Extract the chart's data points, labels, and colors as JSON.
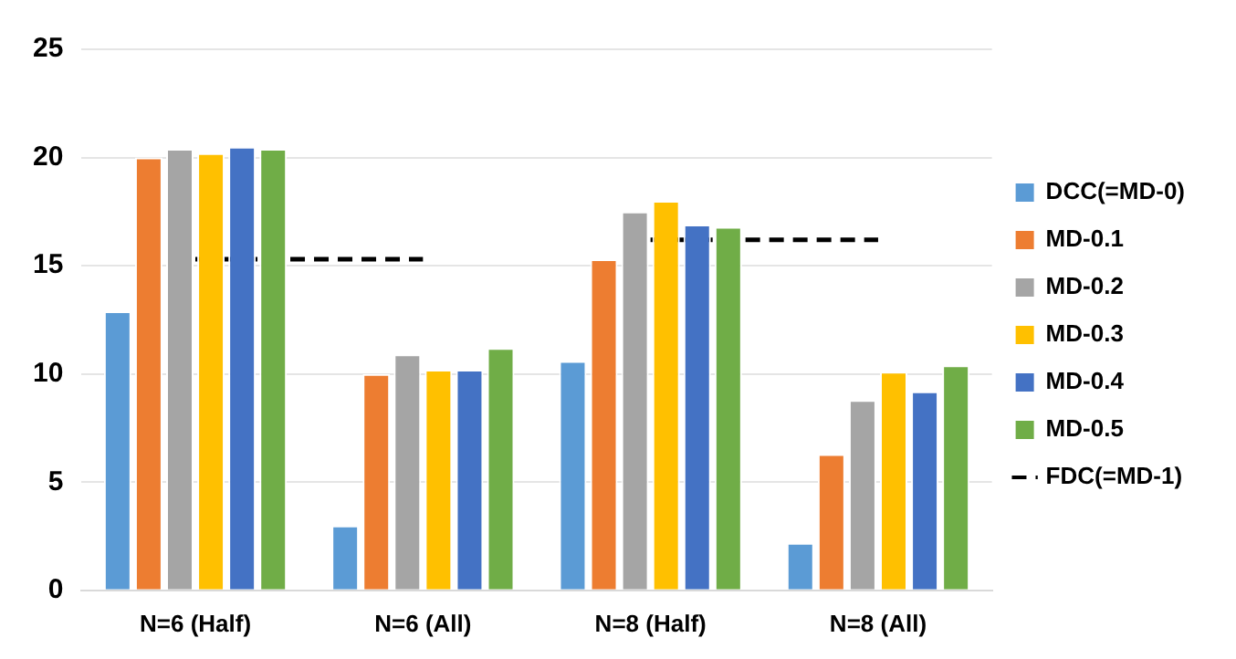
{
  "chart_data": {
    "type": "bar",
    "categories": [
      "N=6 (Half)",
      "N=6 (All)",
      "N=8 (Half)",
      "N=8 (All)"
    ],
    "series": [
      {
        "name": "DCC(=MD-0)",
        "color": "#5b9bd5",
        "values": [
          12.9,
          3.0,
          10.6,
          2.2
        ]
      },
      {
        "name": "MD-0.1",
        "color": "#ed7d31",
        "values": [
          20.0,
          10.0,
          15.3,
          6.3
        ]
      },
      {
        "name": "MD-0.2",
        "color": "#a5a5a5",
        "values": [
          20.4,
          10.9,
          17.5,
          8.8
        ]
      },
      {
        "name": "MD-0.3",
        "color": "#ffc000",
        "values": [
          20.2,
          10.2,
          18.0,
          10.1
        ]
      },
      {
        "name": "MD-0.4",
        "color": "#4472c4",
        "values": [
          20.5,
          10.2,
          16.9,
          9.2
        ]
      },
      {
        "name": "MD-0.5",
        "color": "#70ad47",
        "values": [
          20.4,
          11.2,
          16.8,
          10.4
        ]
      },
      {
        "name": "FDC(=MD-1)",
        "type": "line",
        "color": "#000000",
        "line_style": "dashed",
        "values": [
          15.3,
          15.3,
          16.2,
          16.2
        ]
      }
    ],
    "ylim": [
      0,
      25
    ],
    "yticks": [
      0,
      5,
      10,
      15,
      20,
      25
    ],
    "grid": "y",
    "legend": "right",
    "marker": "none"
  }
}
